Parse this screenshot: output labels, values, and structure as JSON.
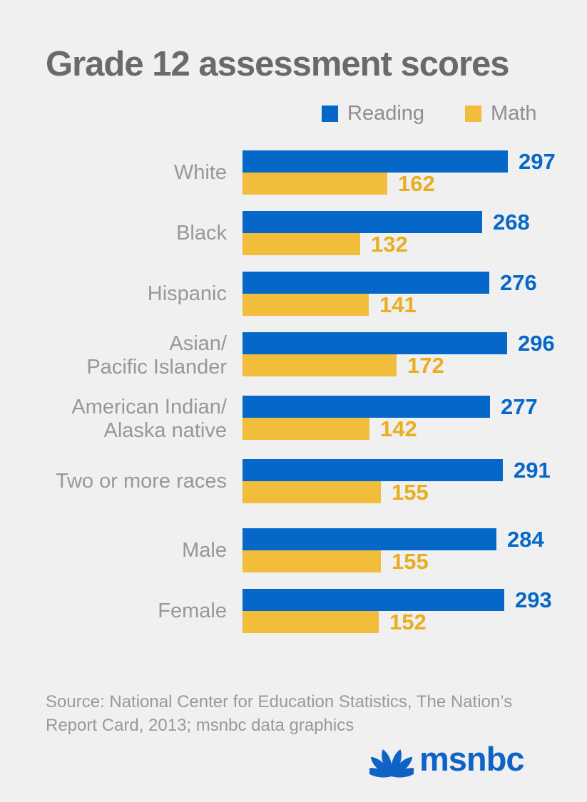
{
  "title": "Grade 12 assessment scores",
  "legend": {
    "reading_label": "Reading",
    "math_label": "Math"
  },
  "colors": {
    "background": "#f0f0f1",
    "reading_bar": "#0568c8",
    "math_bar": "#f2bd3b",
    "reading_value_text": "#0568c8",
    "math_value_text": "#e9ae1d",
    "title_text": "#6a6a6c",
    "category_text": "#98989a",
    "legend_text": "#8f8f91",
    "source_text": "#9a9a9c",
    "logo_blue": "#0f63c6"
  },
  "chart_data": {
    "type": "bar",
    "orientation": "horizontal",
    "title": "Grade 12 assessment scores",
    "legend_position": "top-right",
    "grid": false,
    "xlim": [
      0,
      300
    ],
    "series_names": [
      "Reading",
      "Math"
    ],
    "rows": [
      {
        "category": "White",
        "label_lines": [
          "White"
        ],
        "reading": 297,
        "math": 162,
        "group_break_before": false
      },
      {
        "category": "Black",
        "label_lines": [
          "Black"
        ],
        "reading": 268,
        "math": 132,
        "group_break_before": false
      },
      {
        "category": "Hispanic",
        "label_lines": [
          "Hispanic"
        ],
        "reading": 276,
        "math": 141,
        "group_break_before": false
      },
      {
        "category": "Asian/Pacific Islander",
        "label_lines": [
          "Asian/",
          "Pacific Islander"
        ],
        "reading": 296,
        "math": 172,
        "group_break_before": false
      },
      {
        "category": "American Indian/Alaska native",
        "label_lines": [
          "American Indian/",
          "Alaska native"
        ],
        "reading": 277,
        "math": 142,
        "group_break_before": false
      },
      {
        "category": "Two or more races",
        "label_lines": [
          "Two or more races"
        ],
        "reading": 291,
        "math": 155,
        "group_break_before": false
      },
      {
        "category": "Male",
        "label_lines": [
          "Male"
        ],
        "reading": 284,
        "math": 155,
        "group_break_before": true
      },
      {
        "category": "Female",
        "label_lines": [
          "Female"
        ],
        "reading": 293,
        "math": 152,
        "group_break_before": false
      }
    ]
  },
  "source": {
    "line1": "Source: National Center for Education Statistics, The Nation’s",
    "line2": "Report Card, 2013; msnbc data graphics"
  },
  "logo": {
    "peacock_icon": "nbc-peacock-icon",
    "text": "msnbc"
  }
}
